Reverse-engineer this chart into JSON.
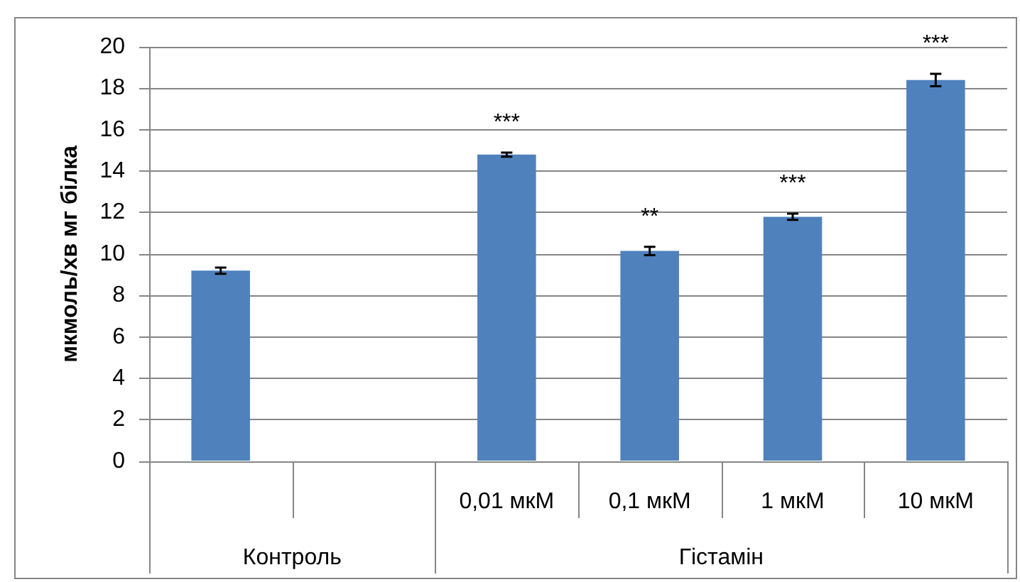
{
  "chart_data": {
    "type": "bar",
    "ylabel": "мкмоль/хв мг білка",
    "categories": [
      null,
      null,
      "0,01 мкМ",
      "0,1 мкМ",
      "1 мкМ",
      "10 мкМ"
    ],
    "values": [
      9.2,
      null,
      14.8,
      10.15,
      11.8,
      18.4
    ],
    "errors": [
      0.15,
      null,
      0.1,
      0.2,
      0.15,
      0.3
    ],
    "value_labels": [
      null,
      null,
      "***",
      "**",
      "***",
      "***"
    ],
    "color": "#4f81bd",
    "ylim": [
      0,
      20
    ],
    "yticks": [
      0,
      2,
      4,
      6,
      8,
      10,
      12,
      14,
      16,
      18,
      20
    ],
    "grid": "y",
    "annotations": [
      "Контроль",
      "Гістамін"
    ]
  }
}
